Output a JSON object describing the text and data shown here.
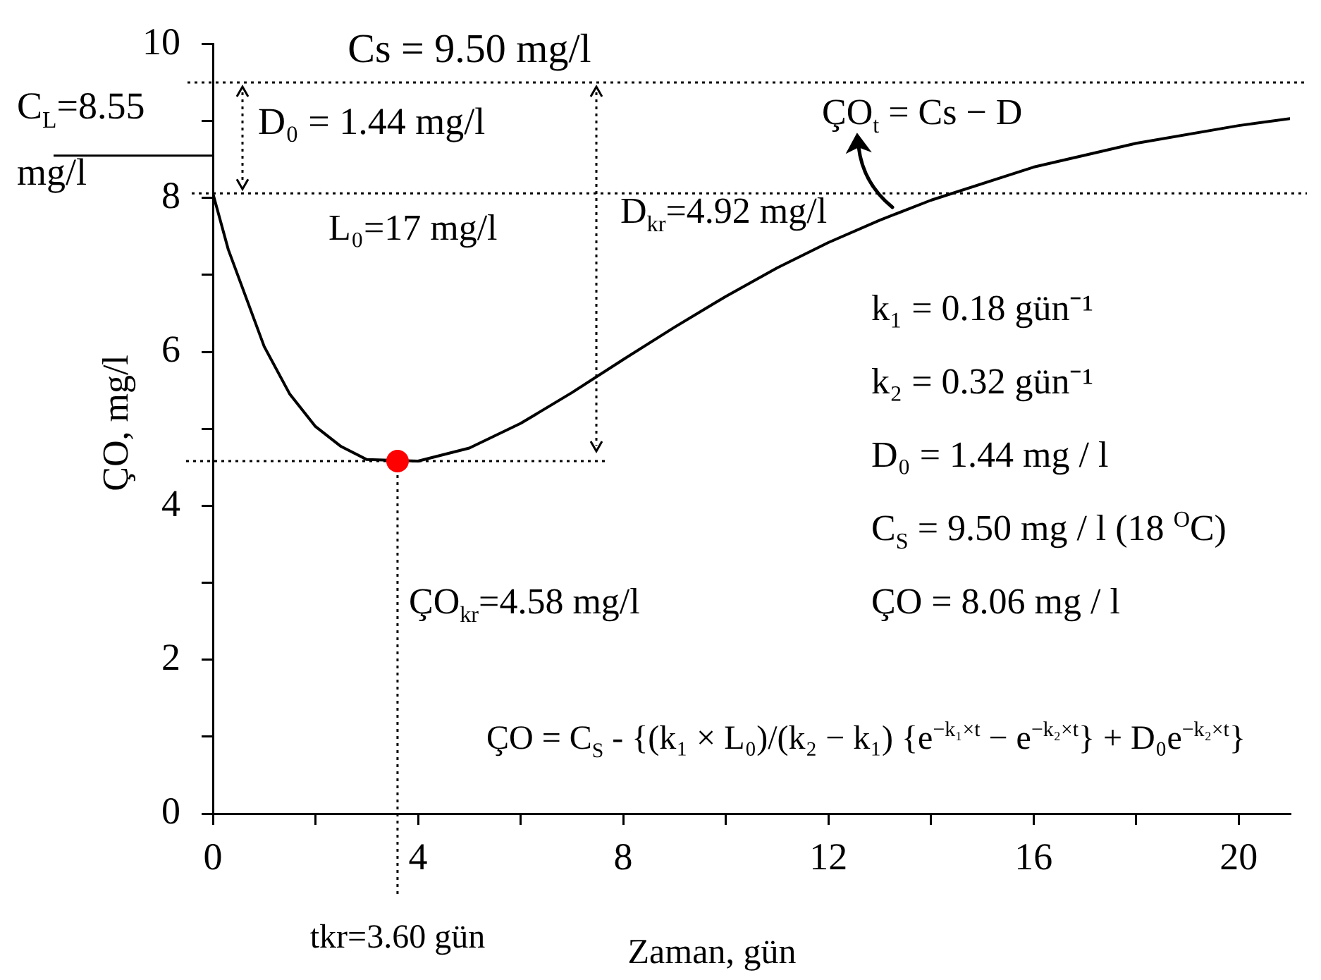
{
  "chart_data": {
    "type": "line",
    "xlabel": "Zaman, gün",
    "ylabel": "ÇO, mg/l",
    "series": [
      {
        "x": [
          0,
          0.3,
          1,
          1.5,
          2,
          2.5,
          3,
          4,
          5,
          6,
          7,
          8,
          9,
          10,
          11,
          12,
          13,
          14,
          16,
          18,
          20,
          21
        ],
        "values": [
          8.06,
          7.33,
          6.07,
          5.45,
          5.03,
          4.77,
          4.6,
          4.58,
          4.75,
          5.07,
          5.47,
          5.9,
          6.32,
          6.72,
          7.09,
          7.42,
          7.71,
          7.97,
          8.4,
          8.71,
          8.94,
          9.03
        ],
        "color": "#000000",
        "marker": "none",
        "line_style": "solid"
      },
      {
        "type": "scatter",
        "x": [
          3.6
        ],
        "values": [
          4.58
        ],
        "color": "#ff0000",
        "marker": "circle"
      }
    ],
    "xlim": [
      0,
      21
    ],
    "xticks": [
      0,
      {
        "value": 2,
        "label": null
      },
      4,
      {
        "value": 6,
        "label": null
      },
      8,
      {
        "value": 10,
        "label": null
      },
      12,
      {
        "value": 14,
        "label": null
      },
      16,
      {
        "value": 18,
        "label": null
      },
      20
    ],
    "ylim": [
      0,
      10
    ],
    "yticks": [
      0,
      {
        "value": 1,
        "label": null
      },
      2,
      {
        "value": 3,
        "label": null
      },
      4,
      {
        "value": 5,
        "label": null
      },
      6,
      {
        "value": 7,
        "label": null
      },
      8,
      {
        "value": 9,
        "label": null
      },
      10
    ],
    "grid": false,
    "legend": false,
    "ref_lines": [
      {
        "axis": "y",
        "value": 9.5,
        "label": "Cs = 9.50 mg/l",
        "color": "#000000",
        "line_style": "dotted"
      },
      {
        "axis": "y",
        "value": 8.55,
        "label": "C$_{L}$=8.55 mg/l",
        "color": "#000000",
        "line_style": "solid"
      },
      {
        "axis": "y",
        "value": 8.06,
        "color": "#000000",
        "line_style": "dotted"
      },
      {
        "axis": "y",
        "value": 4.58,
        "color": "#000000",
        "line_style": "dotted"
      },
      {
        "axis": "x",
        "value": 3.6,
        "label": "tkr=3.60 gün",
        "color": "#000000",
        "line_style": "dotted"
      }
    ],
    "annotations": [
      "D₀ = 1.44 mg/l",
      "L₀=17 mg/l",
      "D$_{kr}$=4.92 mg/l",
      "ÇO$_{t}$ = Cs − D",
      "k₁ = 0.18 gün⁻¹",
      "k₂ = 0.32 gün⁻¹",
      "D₀ = 1.44 mg / l",
      "C$_{S}$ = 9.50 mg / l (18 $^{O}$C)",
      "ÇO = 8.06 mg / l",
      "ÇO$_{kr}$=4.58 mg/l",
      "ÇO = C$_{S}$ - {(k₁ × L₀)/(k₂ − k₁) {e$^{−k₁×t}$ − e$^{−k₂×t}$} + D₀e$^{−k₂×t}$}"
    ]
  }
}
